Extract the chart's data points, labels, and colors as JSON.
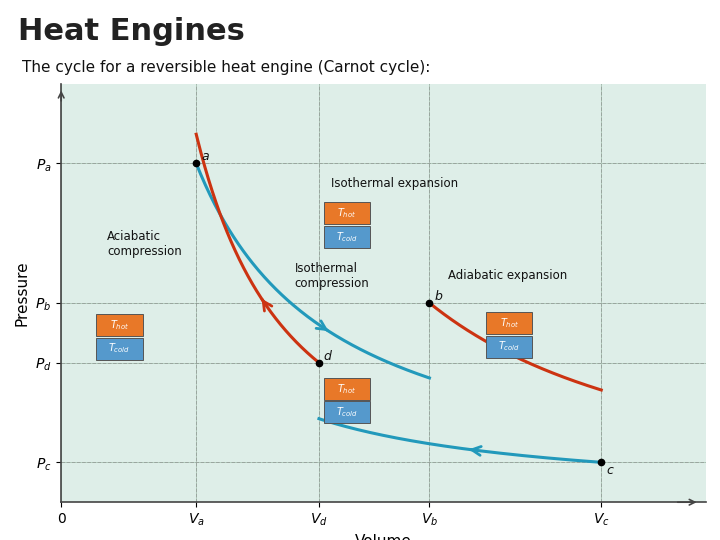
{
  "title": "Heat Engines",
  "subtitle": "The cycle for a reversible heat engine (Carnot cycle):",
  "title_fontsize": 22,
  "subtitle_fontsize": 11,
  "slide_bg": "#ffffff",
  "plot_bg": "#deeee8",
  "xlabel": "Volume",
  "ylabel": "Pressure",
  "xlim": [
    0,
    1.05
  ],
  "ylim": [
    0,
    1.05
  ],
  "Va": 0.22,
  "Vd": 0.42,
  "Vb": 0.6,
  "Vc": 0.88,
  "Pa": 0.85,
  "Pb": 0.5,
  "Pd": 0.35,
  "Pc": 0.1,
  "color_red": "#cc3311",
  "color_blue": "#2299bb",
  "color_orange": "#e87828",
  "color_lblue": "#5599cc",
  "grid_color": "#b0ccbb",
  "header_dark": "#3a4a5a",
  "header_teal": "#6699aa",
  "header_lteal": "#99bbcc",
  "sep_color": "#aaaaaa"
}
